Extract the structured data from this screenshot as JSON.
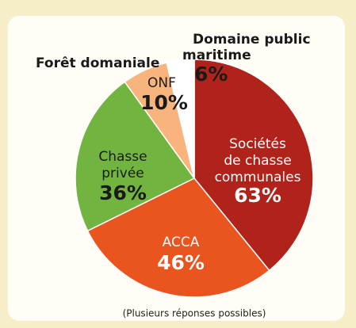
{
  "chart_data": {
    "type": "pie",
    "categories": [
      [
        "Sociétés",
        "de chasse",
        "communales"
      ],
      [
        "ACCA"
      ],
      [
        "Chasse",
        "privée"
      ],
      [
        "Forêt domaniale",
        "ONF"
      ],
      [
        "Domaine public",
        "maritime"
      ]
    ],
    "values": [
      63,
      46,
      36,
      10,
      6
    ],
    "value_labels": [
      "63%",
      "46%",
      "36%",
      "10%",
      "6%"
    ],
    "colors": [
      "#b0231b",
      "#e9541f",
      "#72b440",
      "#f7b47c",
      "#ffffff"
    ],
    "label_colors": [
      "#ffffff",
      "#ffffff",
      "#1a1a1a",
      "#1a1a1a",
      "#1a1a1a"
    ],
    "note": "(Plusieurs réponses possibles)"
  }
}
